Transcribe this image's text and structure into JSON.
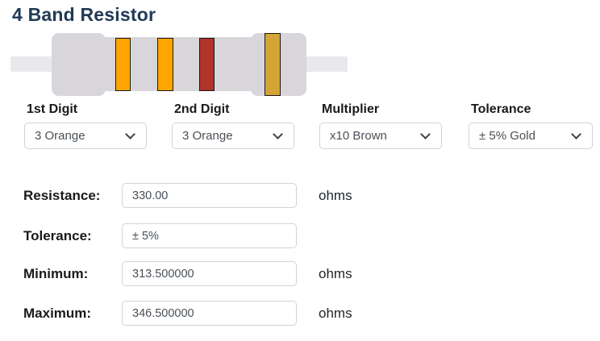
{
  "page": {
    "title": "4 Band Resistor"
  },
  "resistor": {
    "body_color": "#d8d6da",
    "lead_color": "#e9e8ec",
    "bands": [
      {
        "position": "1st-digit",
        "color_name": "orange",
        "color": "#ffa502"
      },
      {
        "position": "2nd-digit",
        "color_name": "orange",
        "color": "#ffa502"
      },
      {
        "position": "multiplier",
        "color_name": "brown",
        "color": "#b2342a"
      },
      {
        "position": "tolerance",
        "color_name": "gold",
        "color": "#d4a437"
      }
    ]
  },
  "selectors": [
    {
      "label": "1st Digit",
      "value": "3 Orange"
    },
    {
      "label": "2nd Digit",
      "value": "3 Orange"
    },
    {
      "label": "Multiplier",
      "value": "x10 Brown"
    },
    {
      "label": "Tolerance",
      "value": "± 5% Gold"
    }
  ],
  "results": [
    {
      "label": "Resistance:",
      "value": "330.00",
      "unit": "ohms"
    },
    {
      "label": "Tolerance:",
      "value": "± 5%",
      "unit": ""
    },
    {
      "label": "Minimum:",
      "value": "313.500000",
      "unit": "ohms"
    },
    {
      "label": "Maximum:",
      "value": "346.500000",
      "unit": "ohms"
    }
  ]
}
